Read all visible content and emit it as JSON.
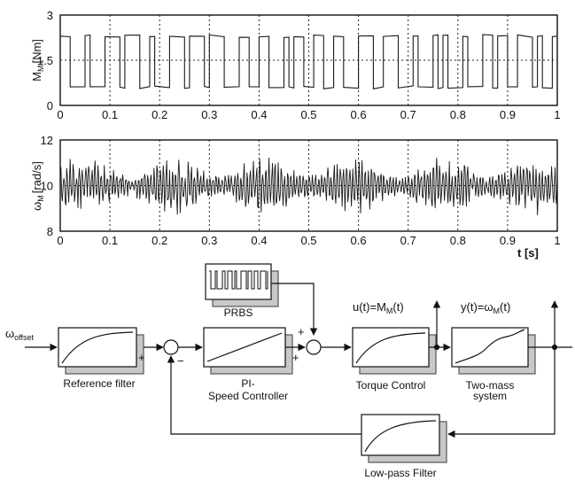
{
  "chart_data": [
    {
      "type": "line",
      "title": "",
      "xlabel": "",
      "ylabel_main": "M",
      "ylabel_sub": "M",
      "ylabel_unit": "[Nm]",
      "xlim": [
        0,
        1
      ],
      "ylim": [
        0,
        3
      ],
      "x_ticks": [
        "0",
        "0.1",
        "0.2",
        "0.3",
        "0.4",
        "0.5",
        "0.6",
        "0.7",
        "0.8",
        "0.9",
        "1"
      ],
      "y_ticks": [
        "0",
        "1.5",
        "3"
      ],
      "vertical_grid_at": [
        0.1,
        0.2,
        0.3,
        0.4,
        0.5,
        0.6,
        0.7,
        0.8,
        0.9
      ],
      "horizontal_grid_at": [
        1.5
      ],
      "series": [
        {
          "style": "PRBS square wave switching between two levels",
          "low_level": 0.6,
          "high_level": 2.3,
          "approx_switch_interval_s": 0.01
        }
      ]
    },
    {
      "type": "line",
      "title": "",
      "xlabel": "t [s]",
      "ylabel_main": "ω",
      "ylabel_sub": "M",
      "ylabel_unit": "[rad/s]",
      "xlim": [
        0,
        1
      ],
      "ylim": [
        8,
        12
      ],
      "x_ticks": [
        "0",
        "0.1",
        "0.2",
        "0.3",
        "0.4",
        "0.5",
        "0.6",
        "0.7",
        "0.8",
        "0.9",
        "1"
      ],
      "y_ticks": [
        "8",
        "10",
        "12"
      ],
      "vertical_grid_at": [
        0.1,
        0.2,
        0.3,
        0.4,
        0.5,
        0.6,
        0.7,
        0.8,
        0.9
      ],
      "horizontal_grid_at": [
        10
      ],
      "series": [
        {
          "style": "noisy oscillation around 10 rad/s",
          "mean": 10,
          "approx_amplitude": 1.2
        }
      ]
    }
  ],
  "diagram": {
    "input_label": "ω",
    "input_label_sub": "offset",
    "reference_filter": "Reference filter",
    "prbs": "PRBS",
    "pi_line1": "PI-",
    "pi_line2": "Speed Controller",
    "torque_control": "Torque Control",
    "two_mass_line1": "Two-mass",
    "two_mass_line2": "system",
    "low_pass": "Low-pass Filter",
    "u_signal": "u(t)=M",
    "u_signal_sub": "M",
    "u_signal_end": "(t)",
    "y_signal": "y(t)=ω",
    "y_signal_sub": "M",
    "y_signal_end": "(t)",
    "sign_plus": "+",
    "sign_minus": "−"
  }
}
